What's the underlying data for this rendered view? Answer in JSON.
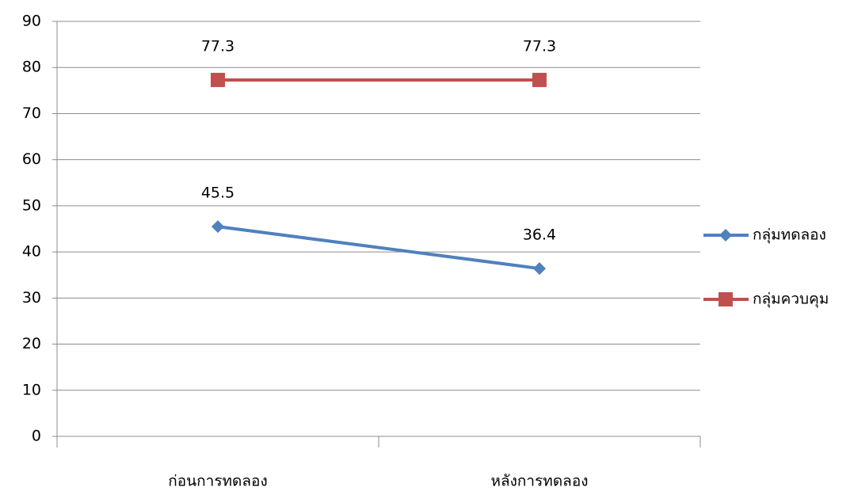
{
  "chart_data": {
    "type": "line",
    "categories": [
      "ก่อนการทดลอง",
      "หลังการทดลอง"
    ],
    "series": [
      {
        "name": "กลุ่มทดลอง",
        "color": "#4f81bd",
        "marker": "diamond",
        "values": [
          45.5,
          36.4
        ]
      },
      {
        "name": "กลุ่มควบคุม",
        "color": "#c0504d",
        "marker": "square",
        "values": [
          77.3,
          77.3
        ]
      }
    ],
    "ylim": [
      0,
      90
    ],
    "yticks": [
      0,
      10,
      20,
      30,
      40,
      50,
      60,
      70,
      80,
      90
    ],
    "grid": true,
    "legend": "right"
  }
}
